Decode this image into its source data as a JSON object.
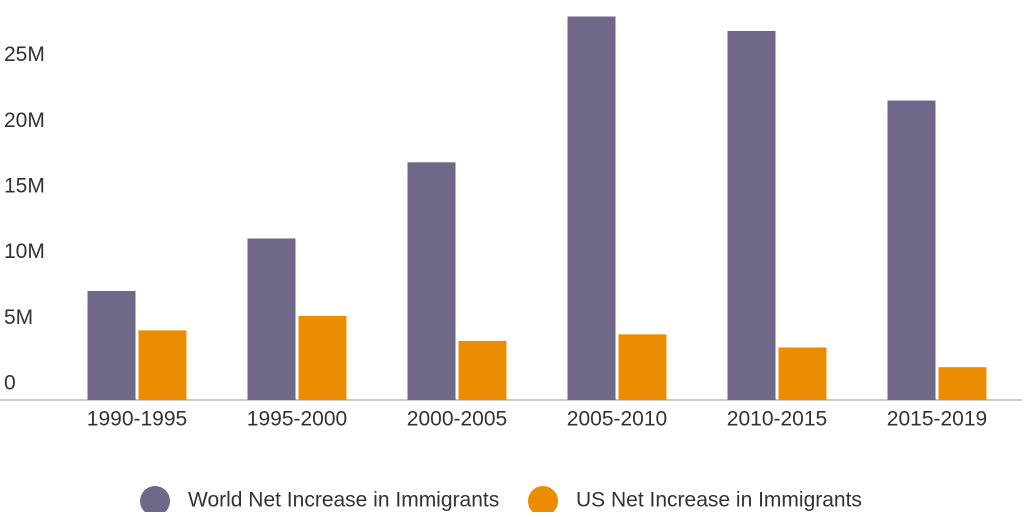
{
  "chart_data": {
    "type": "bar",
    "categories": [
      "1990-1995",
      "1995-2000",
      "2000-2005",
      "2005-2010",
      "2010-2015",
      "2015-2019"
    ],
    "series": [
      {
        "name": "World Net Increase in Immigrants",
        "color": "#6f6888",
        "values": [
          8300000,
          12300000,
          18100000,
          29200000,
          28100000,
          22800000
        ]
      },
      {
        "name": "US Net Increase in Immigrants",
        "color": "#ec8c00",
        "values": [
          5300000,
          6400000,
          4500000,
          5000000,
          4000000,
          2500000
        ]
      }
    ],
    "ylim": [
      0,
      30000000
    ],
    "yticks": [
      {
        "value": 0,
        "label": "0"
      },
      {
        "value": 5000000,
        "label": "5M"
      },
      {
        "value": 10000000,
        "label": "10M"
      },
      {
        "value": 15000000,
        "label": "15M"
      },
      {
        "value": 20000000,
        "label": "20M"
      },
      {
        "value": 25000000,
        "label": "25M"
      }
    ],
    "legend": "bottom"
  }
}
